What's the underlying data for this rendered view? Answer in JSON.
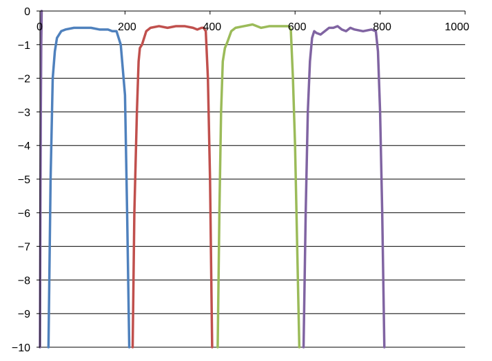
{
  "chart_data": {
    "type": "line",
    "title": "",
    "xlabel": "",
    "ylabel": "",
    "xlim": [
      0,
      1000
    ],
    "ylim": [
      -10,
      0
    ],
    "x_ticks": [
      0,
      200,
      400,
      600,
      800,
      1000
    ],
    "y_ticks": [
      0,
      -1,
      -2,
      -3,
      -4,
      -5,
      -6,
      -7,
      -8,
      -9,
      -10
    ],
    "x_tick_labels": [
      "0",
      "200",
      "400",
      "600",
      "800",
      "1000"
    ],
    "y_tick_labels": [
      "0",
      "−1",
      "−2",
      "−3",
      "−4",
      "−5",
      "−6",
      "−7",
      "−8",
      "−9",
      "−10"
    ],
    "grid": "horizontal",
    "legend": "none",
    "series": [
      {
        "color": "#4F81BD",
        "x": [
          20,
          25,
          30,
          35,
          40,
          50,
          60,
          80,
          100,
          120,
          140,
          160,
          170,
          180,
          190,
          200,
          205,
          210
        ],
        "y": [
          -10,
          -5,
          -2,
          -1.2,
          -0.8,
          -0.6,
          -0.55,
          -0.5,
          -0.5,
          -0.5,
          -0.55,
          -0.55,
          -0.6,
          -0.6,
          -1,
          -2.5,
          -6,
          -10
        ]
      },
      {
        "color": "#C0504D",
        "x": [
          218,
          222,
          228,
          232,
          235,
          240,
          250,
          260,
          280,
          300,
          320,
          340,
          360,
          370,
          380,
          385,
          390,
          395,
          400,
          405
        ],
        "y": [
          -10,
          -6,
          -3,
          -1.5,
          -1.1,
          -1.0,
          -0.6,
          -0.5,
          -0.45,
          -0.5,
          -0.45,
          -0.45,
          -0.5,
          -0.55,
          -0.5,
          -0.5,
          -0.6,
          -2,
          -5,
          -10
        ]
      },
      {
        "color": "#9BBB59",
        "x": [
          418,
          422,
          426,
          430,
          435,
          440,
          450,
          460,
          480,
          500,
          520,
          540,
          560,
          575,
          585,
          590,
          595,
          600,
          605,
          610
        ],
        "y": [
          -10,
          -6,
          -3,
          -1.5,
          -1.1,
          -0.95,
          -0.6,
          -0.5,
          -0.45,
          -0.4,
          -0.5,
          -0.45,
          -0.45,
          -0.45,
          -0.45,
          -0.55,
          -2,
          -4,
          -7,
          -10
        ]
      },
      {
        "color": "#8064A2",
        "x": [
          620,
          625,
          630,
          635,
          640,
          645,
          650,
          660,
          670,
          680,
          690,
          700,
          710,
          720,
          730,
          740,
          760,
          780,
          790,
          795,
          800,
          805,
          810
        ],
        "y": [
          -10,
          -6,
          -3,
          -1.5,
          -0.8,
          -0.6,
          -0.65,
          -0.7,
          -0.6,
          -0.5,
          -0.5,
          -0.45,
          -0.55,
          -0.6,
          -0.5,
          -0.55,
          -0.6,
          -0.55,
          -0.6,
          -1.2,
          -3,
          -6,
          -10
        ]
      },
      {
        "color": "#8064A2",
        "x": [
          0,
          1,
          2,
          3,
          4
        ],
        "y": [
          -10,
          -6,
          -3,
          -1,
          0
        ]
      }
    ]
  }
}
